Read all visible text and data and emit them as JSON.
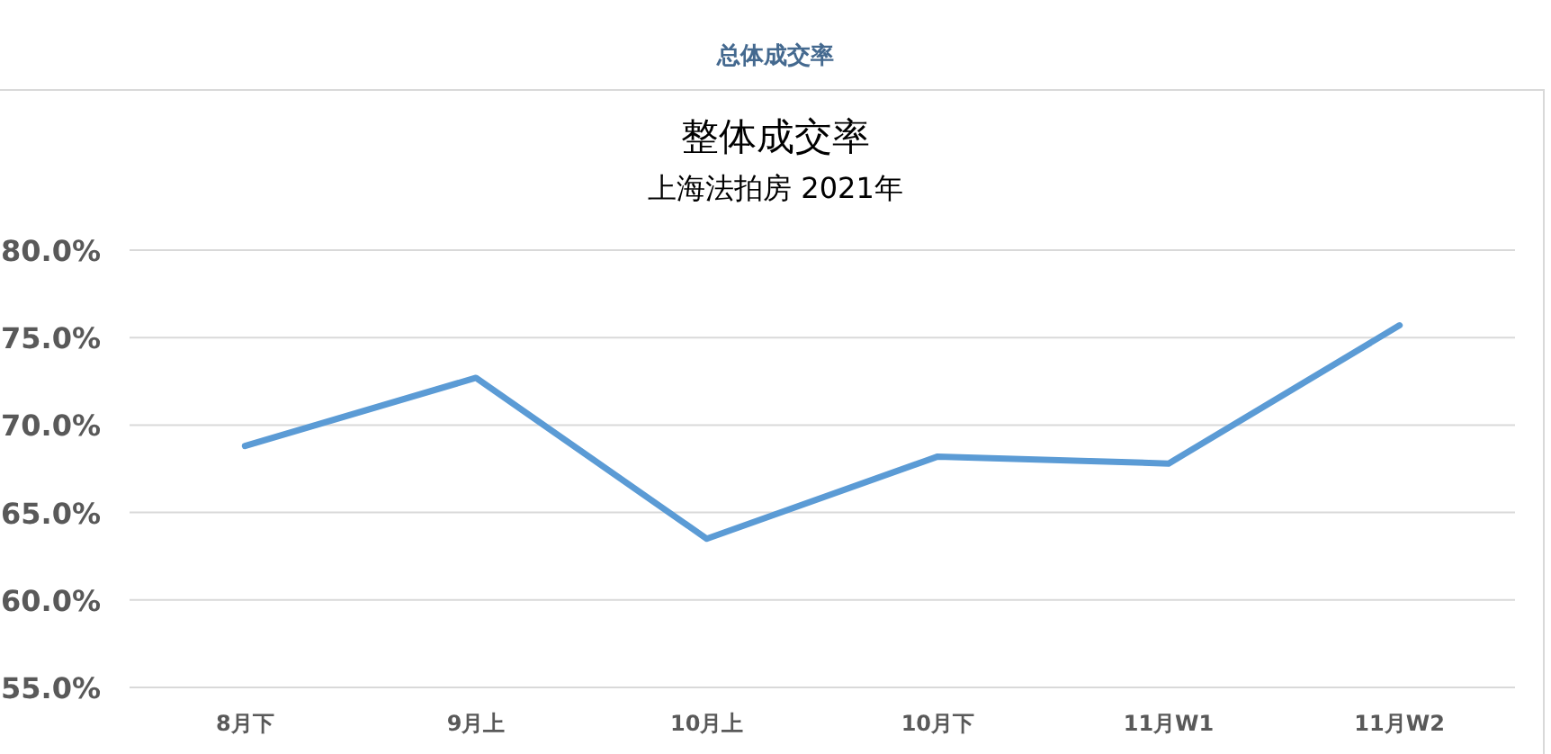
{
  "chart_data": {
    "type": "line",
    "title": "整体成交率",
    "subtitle": "上海法拍房  2021年",
    "annotations": [
      "总体成交率"
    ],
    "categories": [
      "8月下",
      "9月上",
      "10月上",
      "10月下",
      "11月W1",
      "11月W2"
    ],
    "series": [
      {
        "color": "#5b9bd5",
        "values": [
          68.8,
          72.7,
          63.5,
          68.2,
          67.8,
          75.7
        ]
      }
    ],
    "ylim": [
      55,
      80
    ],
    "yticks": [
      {
        "value": 55,
        "label": "55.0%"
      },
      {
        "value": 60,
        "label": "60.0%"
      },
      {
        "value": 65,
        "label": "65.0%"
      },
      {
        "value": 70,
        "label": "70.0%"
      },
      {
        "value": 75,
        "label": "75.0%"
      },
      {
        "value": 80,
        "label": "80.0%"
      }
    ],
    "grid": "y",
    "marker": "none",
    "line_style": "solid"
  }
}
